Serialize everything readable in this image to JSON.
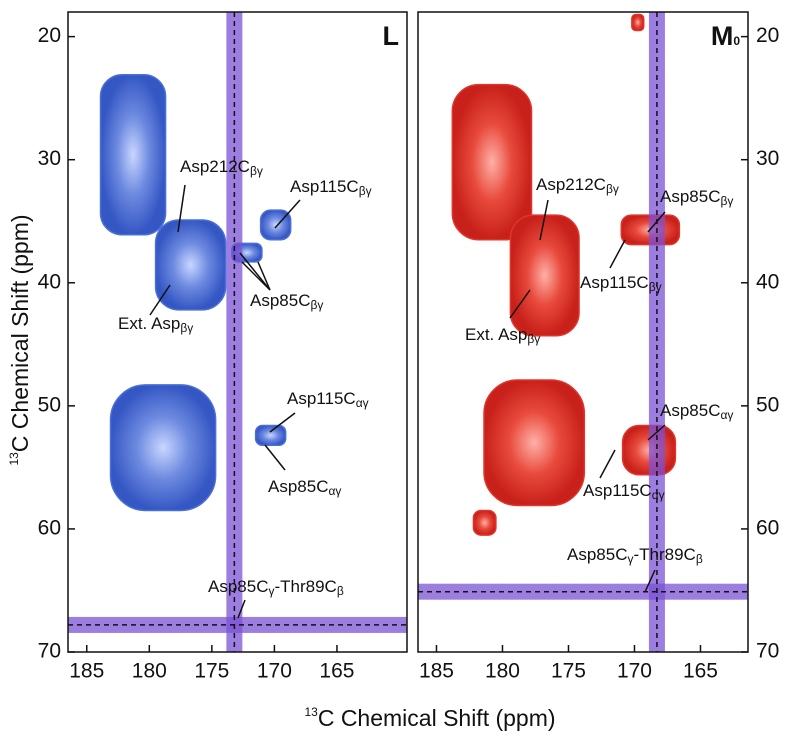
{
  "chart_data": [
    {
      "type": "contour",
      "label": [
        "L"
      ],
      "color": "#4a6fd6",
      "xlabel": [
        "13",
        "C Chemical Shift (ppm)"
      ],
      "ylabel": [
        "13",
        "C Chemical Shift (ppm)"
      ],
      "xlim": [
        186.5,
        159.4
      ],
      "ylim": [
        18,
        70
      ],
      "xticks": [
        185,
        180,
        175,
        170,
        165
      ],
      "yticks": [
        20,
        30,
        40,
        50,
        60,
        70
      ],
      "reference_lines": {
        "x": 173.2,
        "y": 67.8,
        "color": "#7b52d6"
      },
      "peaks": [
        {
          "x": [
            183.9,
            178.7
          ],
          "y": [
            23.1,
            36.1
          ]
        },
        {
          "x": [
            179.5,
            173.9
          ],
          "y": [
            34.9,
            42.2
          ]
        },
        {
          "x": [
            171.1,
            168.7
          ],
          "y": [
            34.1,
            36.5
          ]
        },
        {
          "x": [
            173.4,
            171.0
          ],
          "y": [
            36.8,
            38.3
          ]
        },
        {
          "x": [
            183.1,
            174.7
          ],
          "y": [
            48.3,
            58.5
          ]
        },
        {
          "x": [
            171.5,
            169.1
          ],
          "y": [
            51.6,
            53.2
          ]
        }
      ],
      "annotations": [
        [
          "Asp212C",
          "βγ"
        ],
        [
          "Asp115C",
          "βγ"
        ],
        [
          "Asp85C",
          "βγ"
        ],
        [
          "Ext. Asp",
          "βγ"
        ],
        [
          "Asp115C",
          "αγ"
        ],
        [
          "Asp85C",
          "αγ"
        ],
        [
          "Asp85C",
          "γ",
          "-Thr89C",
          "β"
        ]
      ]
    },
    {
      "type": "contour",
      "label": [
        "M",
        "0"
      ],
      "color": "#e0352b",
      "xlim": [
        186.4,
        161.4
      ],
      "ylim": [
        18,
        70
      ],
      "xticks": [
        185,
        180,
        175,
        170,
        165
      ],
      "yticks": [
        20,
        30,
        40,
        50,
        60,
        70
      ],
      "reference_lines": {
        "x": 168.3,
        "y": 65.1,
        "color": "#7b52d6"
      },
      "peaks": [
        {
          "x": [
            183.8,
            177.8
          ],
          "y": [
            23.9,
            36.5
          ]
        },
        {
          "x": [
            179.4,
            174.2
          ],
          "y": [
            34.5,
            44.3
          ]
        },
        {
          "x": [
            171.0,
            166.6
          ],
          "y": [
            34.5,
            36.9
          ]
        },
        {
          "x": [
            181.4,
            173.8
          ],
          "y": [
            47.9,
            58.1
          ]
        },
        {
          "x": [
            170.9,
            166.9
          ],
          "y": [
            51.6,
            55.6
          ]
        },
        {
          "x": [
            182.2,
            180.5
          ],
          "y": [
            58.5,
            60.5
          ]
        },
        {
          "x": [
            170.2,
            169.3
          ],
          "y": [
            18.2,
            19.5
          ]
        }
      ],
      "annotations": [
        [
          "Asp212C",
          "βγ"
        ],
        [
          "Asp85C",
          "βγ"
        ],
        [
          "Asp115C",
          "βγ"
        ],
        [
          "Ext. Asp",
          "βγ"
        ],
        [
          "Asp85C",
          "αγ"
        ],
        [
          "Asp115C",
          "αγ"
        ],
        [
          "Asp85C",
          "γ",
          "-Thr89C",
          "β"
        ]
      ]
    }
  ]
}
